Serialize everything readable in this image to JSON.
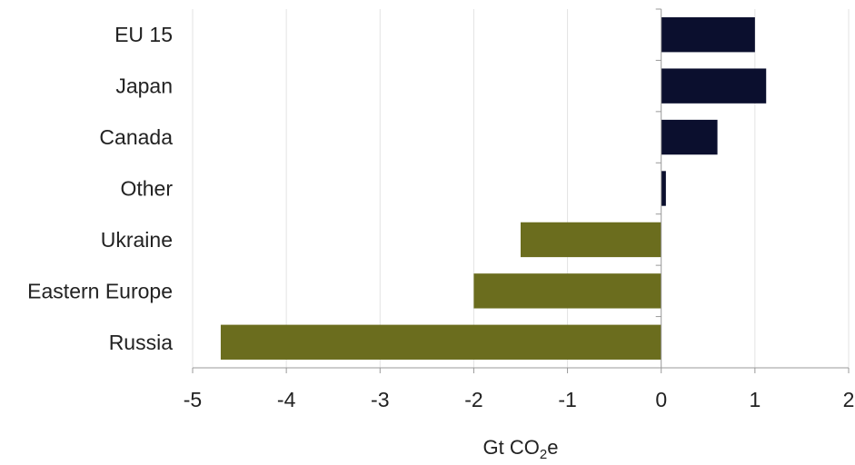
{
  "chart_data": {
    "type": "bar",
    "orientation": "horizontal",
    "categories": [
      "EU 15",
      "Japan",
      "Canada",
      "Other",
      "Ukraine",
      "Eastern Europe",
      "Russia"
    ],
    "values": [
      1.0,
      1.12,
      0.6,
      0.05,
      -1.5,
      -2.0,
      -4.7
    ],
    "xlabel": "Gt CO₂e",
    "xlabel_parts": {
      "main": "Gt CO",
      "sub": "2",
      "tail": "e"
    },
    "xlim": [
      -5,
      2
    ],
    "xticks": [
      -5,
      -4,
      -3,
      -2,
      -1,
      0,
      1,
      2
    ],
    "grid": "vertical",
    "legend": "none",
    "colors": {
      "positive": "#0b0f2e",
      "negative": "#6b6d1e",
      "grid": "#e3e3e3",
      "axis": "#999999"
    }
  }
}
